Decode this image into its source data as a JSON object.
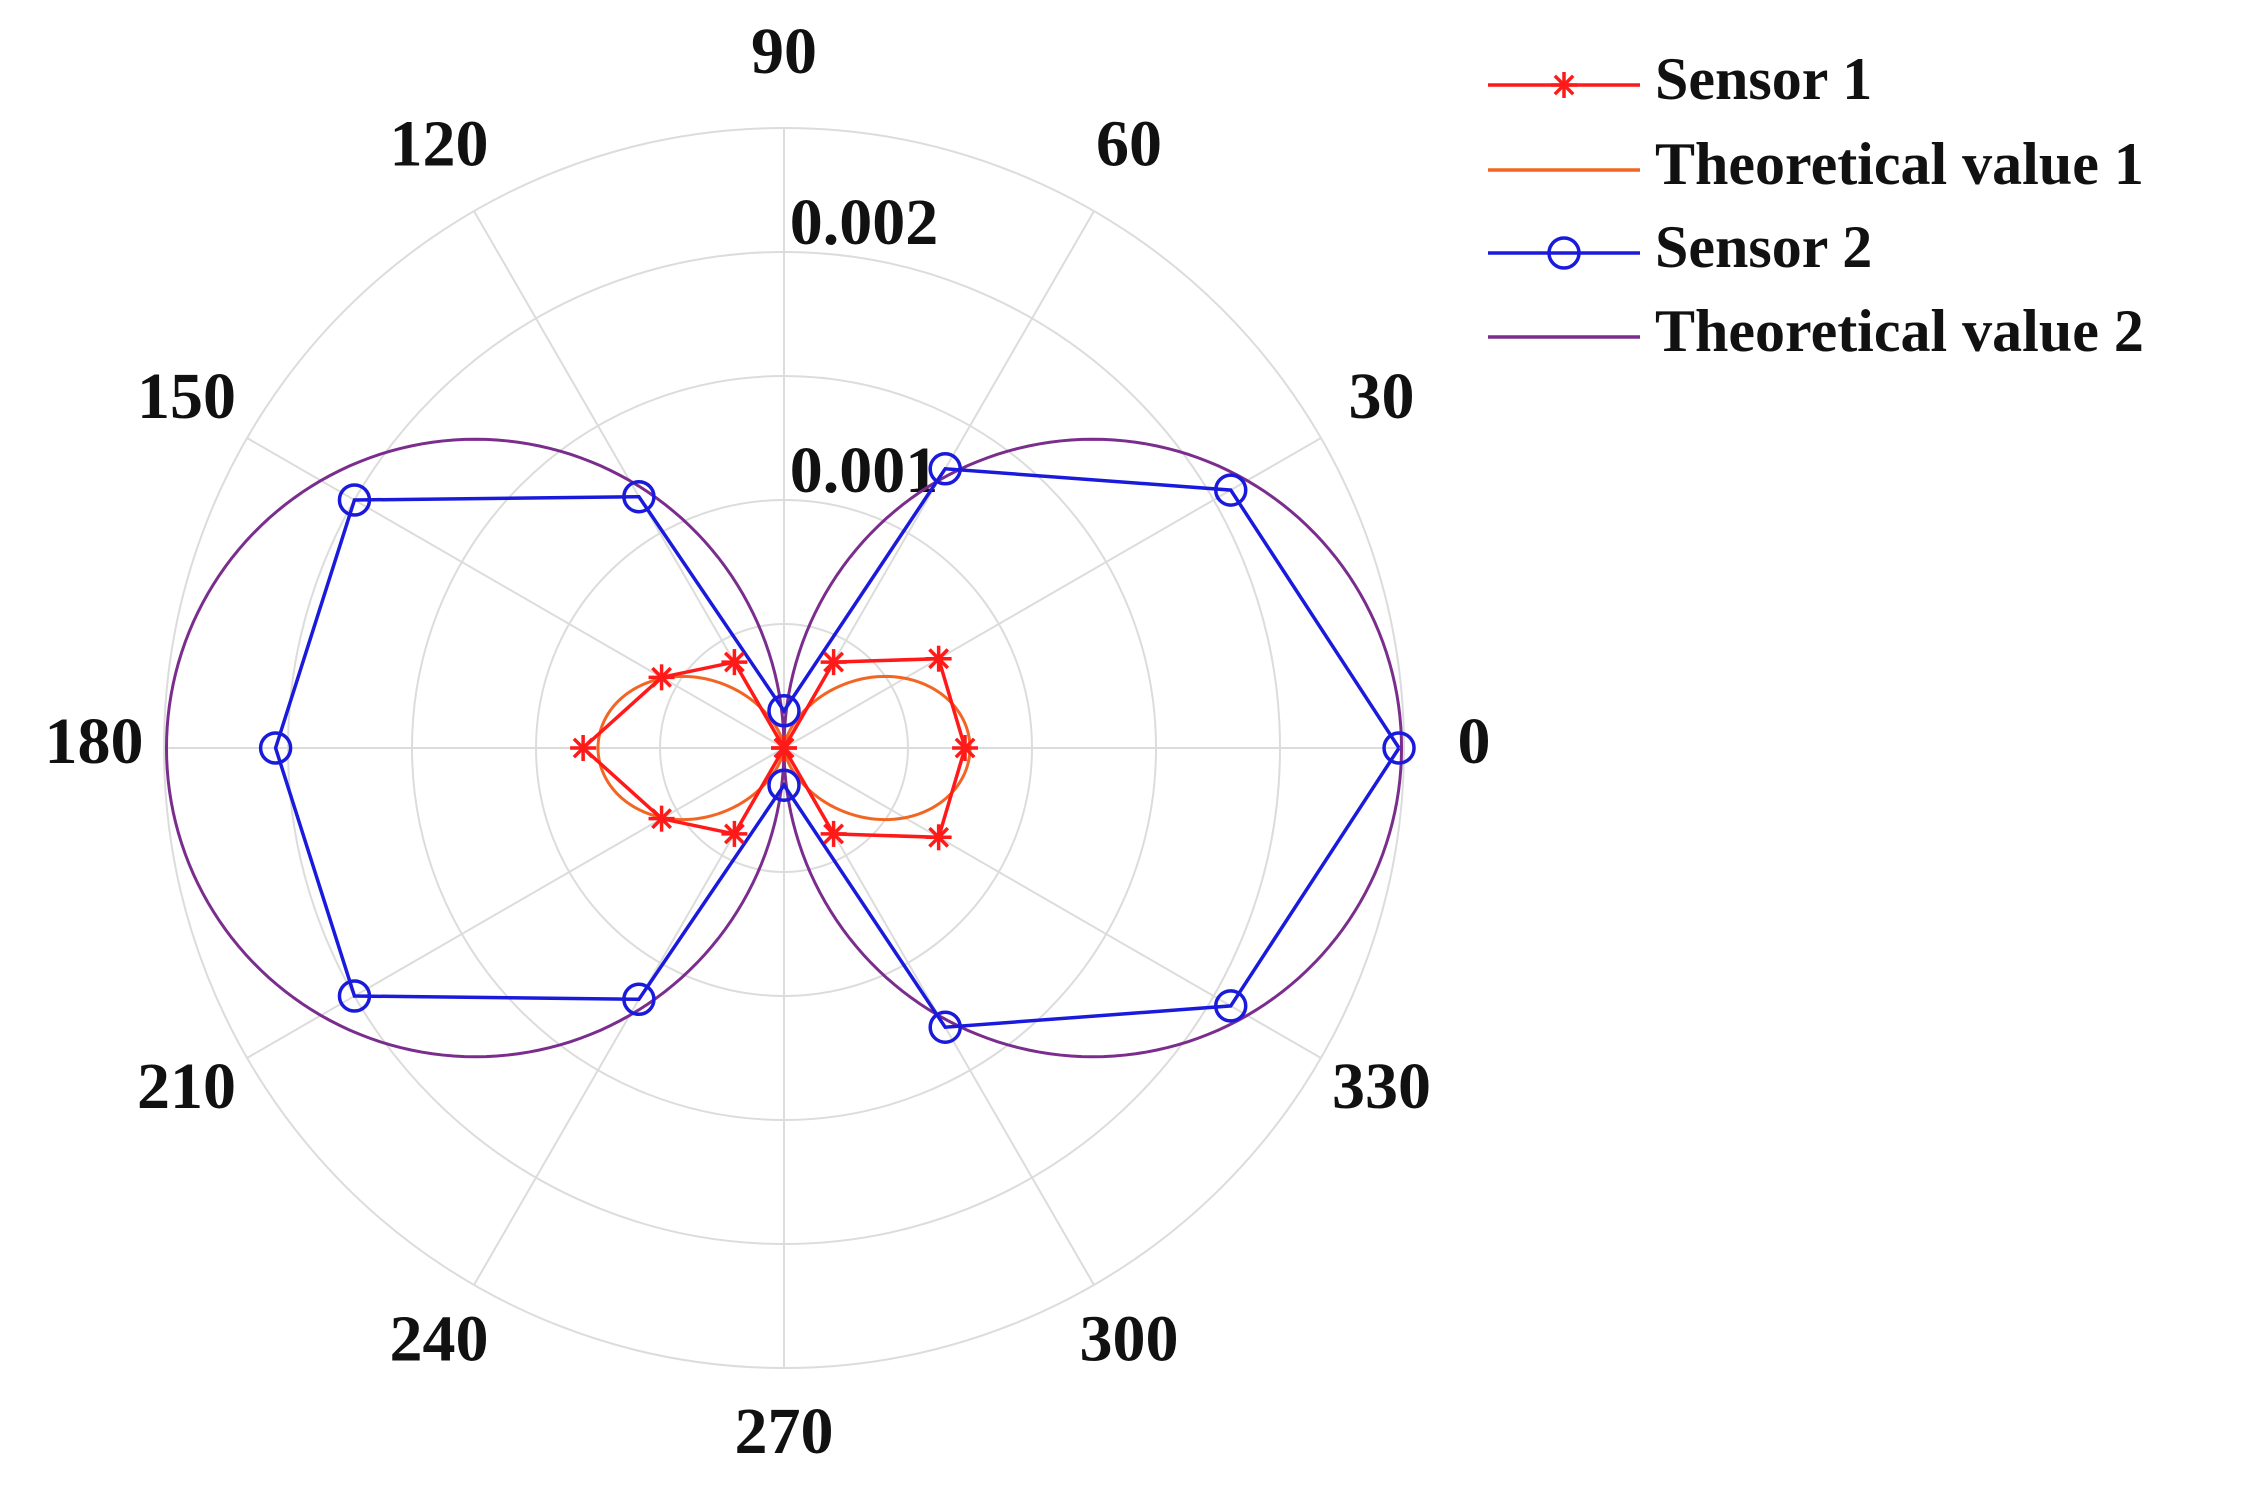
{
  "chart_data": {
    "type": "polar",
    "r_max": 0.0025,
    "r_ticks": [
      0.001,
      0.002
    ],
    "r_tick_labels": [
      "0.001",
      "0.002"
    ],
    "theta_ticks_deg": [
      0,
      30,
      60,
      90,
      120,
      150,
      180,
      210,
      240,
      270,
      300,
      330
    ],
    "theta_tick_labels": [
      "0",
      "30",
      "60",
      "90",
      "120",
      "150",
      "180",
      "210",
      "240",
      "270",
      "300",
      "330"
    ],
    "grid": true,
    "legend_position": "top-right",
    "series": [
      {
        "name": "Sensor 1",
        "color": "#ff1a1a",
        "marker": "asterisk",
        "theta_deg": [
          0,
          30,
          60,
          90,
          120,
          150,
          180,
          210,
          240,
          270,
          300,
          330,
          360
        ],
        "r": [
          0.00073,
          0.00072,
          0.0004,
          0.0,
          0.0004,
          0.00057,
          0.00081,
          0.00057,
          0.0004,
          0.0,
          0.0004,
          0.00072,
          0.00073
        ]
      },
      {
        "name": "Theoretical value 1",
        "color": "#f26522",
        "marker": "none",
        "curve": "cos_squared",
        "amplitude": 0.00075
      },
      {
        "name": "Sensor 2",
        "color": "#1a1adc",
        "marker": "circle",
        "theta_deg": [
          0,
          30,
          60,
          90,
          120,
          150,
          180,
          210,
          240,
          270,
          300,
          330,
          360
        ],
        "r": [
          0.00248,
          0.00208,
          0.0013,
          0.00015,
          0.00117,
          0.002,
          0.00205,
          0.002,
          0.00117,
          0.00015,
          0.0013,
          0.00208,
          0.00248
        ]
      },
      {
        "name": "Theoretical value 2",
        "color": "#7b2d8e",
        "marker": "none",
        "curve": "abs_cos",
        "amplitude": 0.00249
      }
    ]
  }
}
